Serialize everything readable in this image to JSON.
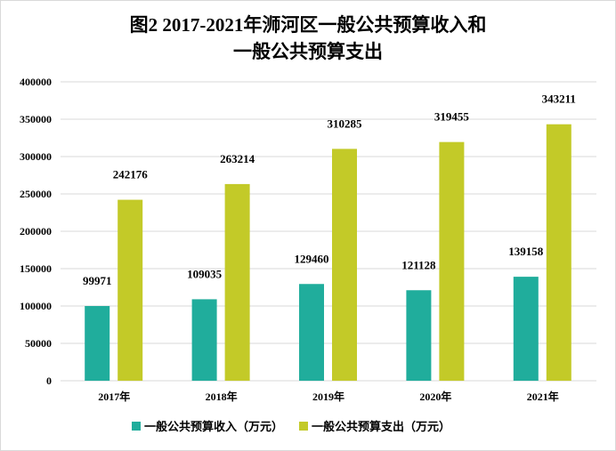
{
  "chart_data": {
    "type": "bar",
    "title_line1": "图2  2017-2021年浉河区一般公共预算收入和",
    "title_line2": "一般公共预算支出",
    "categories": [
      "2017年",
      "2018年",
      "2019年",
      "2020年",
      "2021年"
    ],
    "series": [
      {
        "name": "一般公共预算收入（万元）",
        "color": "#20ad9c",
        "values": [
          99971,
          109035,
          129460,
          121128,
          139158
        ]
      },
      {
        "name": "一般公共预算支出（万元）",
        "color": "#c3ca28",
        "values": [
          242176,
          263214,
          310285,
          319455,
          343211
        ]
      }
    ],
    "ylim": [
      0,
      400000
    ],
    "yticks": [
      "0",
      "50000",
      "100000",
      "150000",
      "200000",
      "250000",
      "300000",
      "350000",
      "400000"
    ],
    "grid": true,
    "legend": "bottom"
  }
}
